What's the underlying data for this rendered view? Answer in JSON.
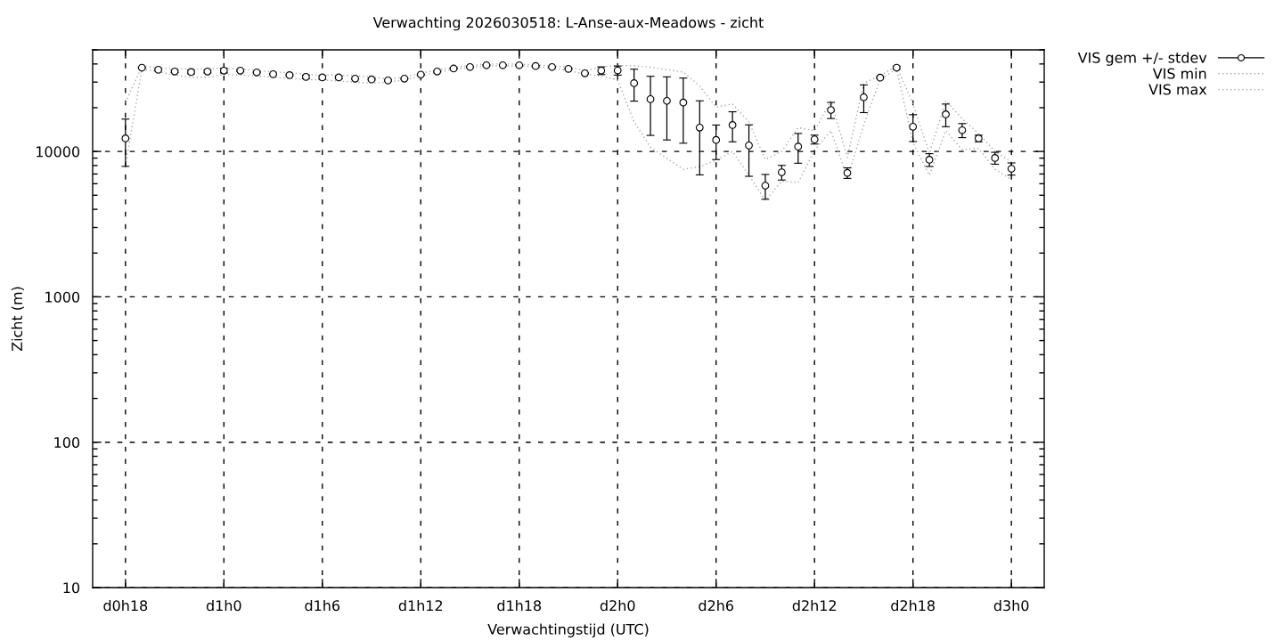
{
  "chart_data": {
    "type": "scatter",
    "title": "Verwachting 2026030518: L-Anse-aux-Meadows - zicht",
    "xlabel": "Verwachtingstijd (UTC)",
    "ylabel": "Zicht (m)",
    "categories": [
      "d0h18",
      null,
      null,
      null,
      null,
      null,
      "d1h0",
      null,
      null,
      null,
      null,
      null,
      "d1h6",
      null,
      null,
      null,
      null,
      null,
      "d1h12",
      null,
      null,
      null,
      null,
      null,
      "d1h18",
      null,
      null,
      null,
      null,
      null,
      "d2h0",
      null,
      null,
      null,
      null,
      null,
      "d2h6",
      null,
      null,
      null,
      null,
      null,
      "d2h12",
      null,
      null,
      null,
      null,
      null,
      "d2h18",
      null,
      null,
      null,
      null,
      null,
      "d3h0"
    ],
    "ylim": [
      10,
      50000
    ],
    "yticks": [
      10,
      100,
      1000,
      10000
    ],
    "log": "y",
    "grid": true,
    "legend": "top right",
    "series": [
      {
        "name": "VIS gem +/- stdev",
        "color": "#000000",
        "marker": "circle",
        "values": [
          12300,
          37700,
          36500,
          35500,
          35200,
          35500,
          36000,
          36000,
          35000,
          34000,
          33500,
          32600,
          32300,
          32300,
          31700,
          31300,
          30800,
          31700,
          33800,
          35500,
          37200,
          38100,
          39200,
          39200,
          39200,
          38700,
          38100,
          37000,
          34500,
          36000,
          36100,
          29500,
          22900,
          22300,
          21700,
          14600,
          12000,
          15200,
          11000,
          5820,
          7190,
          10800,
          12100,
          19300,
          7120,
          23600,
          32200,
          37700,
          14800,
          8770,
          18000,
          14000,
          12300,
          9020,
          7610
        ],
        "errors": [
          4400,
          300,
          300,
          600,
          1000,
          800,
          1300,
          500,
          300,
          300,
          500,
          900,
          900,
          700,
          300,
          300,
          300,
          300,
          300,
          300,
          300,
          300,
          300,
          300,
          300,
          300,
          300,
          300,
          300,
          2200,
          2600,
          7300,
          10000,
          10300,
          10300,
          7700,
          3200,
          3550,
          4250,
          1130,
          830,
          2500,
          850,
          2450,
          590,
          5100,
          400,
          900,
          3100,
          890,
          3200,
          1550,
          650,
          850,
          730
        ]
      },
      {
        "name": "VIS min",
        "type": "line",
        "color": "#a8a8a8",
        "line_style": "dotted",
        "values": [
          7900,
          37000,
          35300,
          33500,
          32400,
          32400,
          33800,
          33500,
          33000,
          32400,
          31800,
          31300,
          31000,
          30500,
          30000,
          29500,
          30000,
          31000,
          33000,
          35000,
          36800,
          37800,
          38800,
          38800,
          38800,
          38200,
          37500,
          36000,
          34000,
          33000,
          31000,
          16000,
          10700,
          8970,
          7540,
          7850,
          8700,
          10000,
          6860,
          4600,
          6250,
          6100,
          10200,
          13900,
          6550,
          15300,
          31300,
          37000,
          11500,
          6860,
          13900,
          10300,
          10500,
          7540,
          6400
        ]
      },
      {
        "name": "VIS max",
        "type": "line",
        "color": "#a8a8a8",
        "line_style": "dotted",
        "values": [
          21700,
          38600,
          37700,
          37000,
          37000,
          37000,
          37400,
          37000,
          36000,
          35300,
          34800,
          34000,
          33600,
          33500,
          33200,
          32500,
          31500,
          32400,
          34500,
          36300,
          38000,
          38900,
          40000,
          40000,
          40000,
          39400,
          38800,
          38000,
          36000,
          38200,
          39100,
          38800,
          38000,
          36500,
          35200,
          28200,
          20200,
          21200,
          16000,
          8800,
          10000,
          14600,
          13900,
          22300,
          9100,
          29500,
          33200,
          38900,
          21200,
          9700,
          22300,
          16800,
          13300,
          10000,
          8470
        ]
      }
    ]
  }
}
